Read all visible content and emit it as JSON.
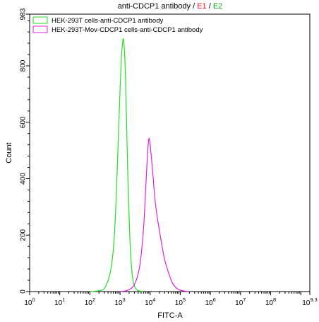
{
  "chart_data": {
    "type": "line",
    "title_parts": [
      {
        "text": "anti-CDCP1 antibody",
        "color": "#000000"
      },
      {
        "text": " / ",
        "color": "#000000"
      },
      {
        "text": "E1",
        "color": "#e8141b"
      },
      {
        "text": " / ",
        "color": "#000000"
      },
      {
        "text": "E2",
        "color": "#12a012"
      }
    ],
    "xlabel": "FITC-A",
    "ylabel": "Count",
    "x_scale": "log",
    "xlim": [
      1,
      1995262314
    ],
    "ylim": [
      0,
      983
    ],
    "x_tick_labels": [
      {
        "base": "10",
        "exp": "0",
        "value": 1
      },
      {
        "base": "10",
        "exp": "1",
        "value": 10
      },
      {
        "base": "10",
        "exp": "2",
        "value": 100
      },
      {
        "base": "10",
        "exp": "3",
        "value": 1000
      },
      {
        "base": "10",
        "exp": "4",
        "value": 10000
      },
      {
        "base": "10",
        "exp": "5",
        "value": 100000
      },
      {
        "base": "10",
        "exp": "6",
        "value": 1000000
      },
      {
        "base": "10",
        "exp": "7",
        "value": 10000000
      },
      {
        "base": "10",
        "exp": "8",
        "value": 100000000
      },
      {
        "base": "10",
        "exp": "9.3",
        "value": 1995262314
      }
    ],
    "y_tick_labels": [
      {
        "text": "0",
        "value": 0
      },
      {
        "text": "200",
        "value": 200
      },
      {
        "text": "400",
        "value": 400
      },
      {
        "text": "600",
        "value": 600
      },
      {
        "text": "800",
        "value": 800
      },
      {
        "text": "983",
        "value": 983
      }
    ],
    "legend_position": "top-left",
    "grid": false,
    "series": [
      {
        "name": "HEK-293T cells-anti-CDCP1 antibody",
        "color": "#22dd22",
        "x": [
          100,
          200,
          320,
          500,
          650,
          800,
          950,
          1100,
          1250,
          1350,
          1500,
          1650,
          1850,
          2100,
          2400,
          2800,
          3500,
          4500,
          6000
        ],
        "y": [
          0,
          3,
          15,
          80,
          200,
          420,
          650,
          820,
          890,
          880,
          780,
          600,
          380,
          200,
          90,
          30,
          8,
          2,
          0
        ]
      },
      {
        "name": "HEK-293T-Mov-CDCP1 cells-anti-CDCP1 antibody",
        "color": "#dd22dd",
        "x": [
          1000,
          1800,
          3000,
          4500,
          6000,
          7000,
          8000,
          9000,
          10000,
          12000,
          15000,
          20000,
          25000,
          30000,
          40000,
          55000,
          80000,
          120000,
          200000
        ],
        "y": [
          0,
          5,
          25,
          90,
          220,
          350,
          470,
          540,
          520,
          430,
          310,
          220,
          160,
          115,
          70,
          30,
          10,
          3,
          0
        ]
      }
    ]
  }
}
